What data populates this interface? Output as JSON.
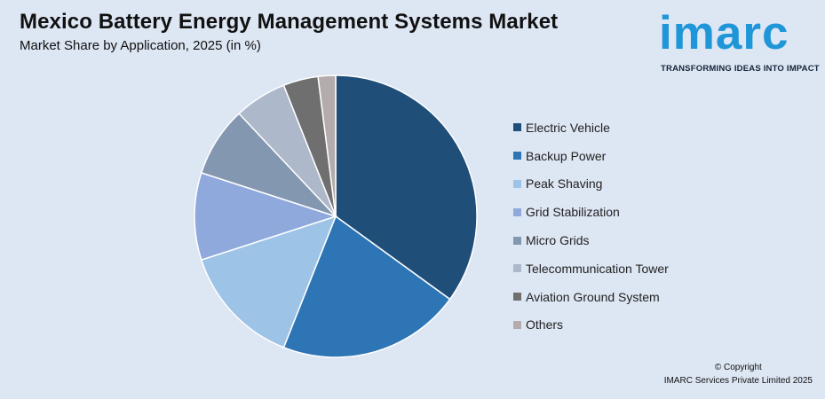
{
  "header": {
    "title": "Mexico Battery Energy Management Systems Market",
    "subtitle": "Market Share by Application, 2025 (in %)"
  },
  "logo": {
    "word": "imarc",
    "tagline": "TRANSFORMING IDEAS INTO IMPACT",
    "color": "#1f96d8"
  },
  "footer": {
    "line1": "© Copyright",
    "line2": "IMARC Services Private Limited 2025"
  },
  "chart_data": {
    "type": "pie",
    "title": "Mexico Battery Energy Management Systems Market",
    "subtitle": "Market Share by Application, 2025 (in %)",
    "legend_position": "right",
    "categories": [
      "Electric Vehicle",
      "Backup Power",
      "Peak Shaving",
      "Grid Stabilization",
      "Micro Grids",
      "Telecommunication Tower",
      "Aviation Ground System",
      "Others"
    ],
    "values": [
      35,
      21,
      14,
      10,
      8,
      6,
      4,
      2
    ],
    "colors": [
      "#1f4e79",
      "#2e75b6",
      "#9dc3e6",
      "#8fa9dc",
      "#8497b0",
      "#adb9ca",
      "#6f6f6f",
      "#b4acac"
    ]
  }
}
